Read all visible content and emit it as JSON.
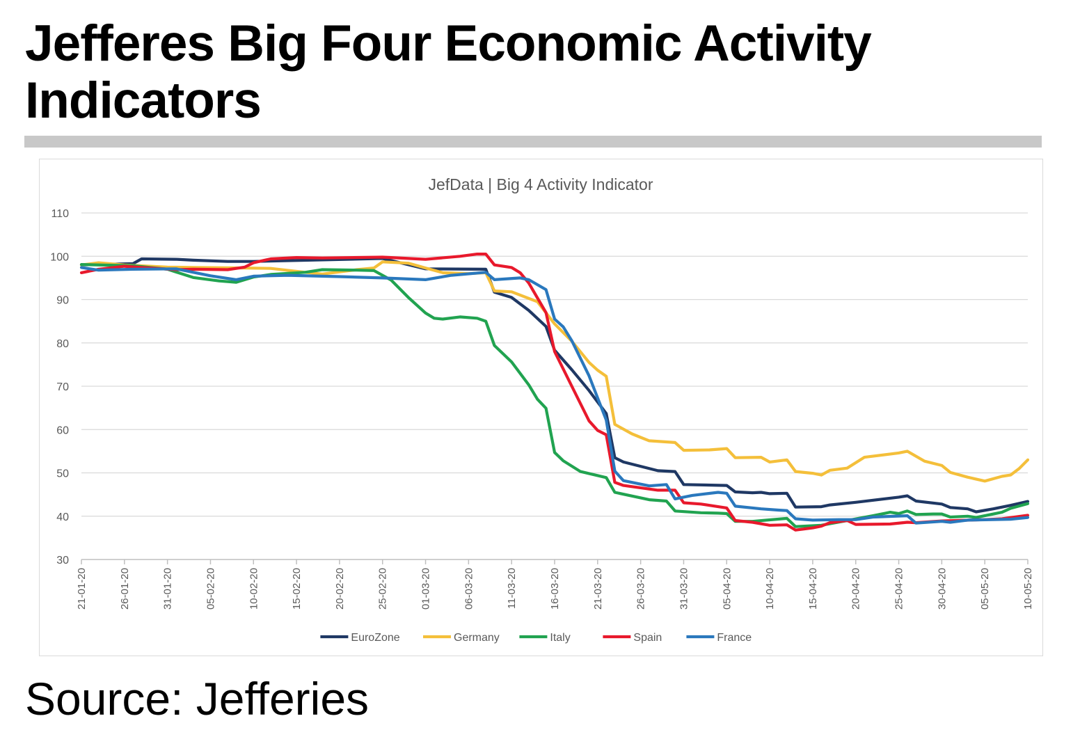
{
  "headline": "Jefferes Big Four Economic Activity Indicators",
  "source_note": "Source: Jefferies",
  "colors": {
    "rule": "#c8c8c8",
    "gridline": "#d9d9d9",
    "text": "#595959"
  },
  "chart_data": {
    "type": "line",
    "title": "JefData | Big 4 Activity Indicator",
    "xlabel": "",
    "ylabel": "",
    "ylim": [
      30,
      110
    ],
    "yticks": [
      30,
      40,
      50,
      60,
      70,
      80,
      90,
      100,
      110
    ],
    "grid": true,
    "legend_position": "bottom",
    "x_start": "21-01-20",
    "x_end": "10-05-20",
    "x_tick_labels": [
      "21-01-20",
      "26-01-20",
      "31-01-20",
      "05-02-20",
      "10-02-20",
      "15-02-20",
      "20-02-20",
      "25-02-20",
      "01-03-20",
      "06-03-20",
      "11-03-20",
      "16-03-20",
      "21-03-20",
      "26-03-20",
      "31-03-20",
      "05-04-20",
      "10-04-20",
      "15-04-20",
      "20-04-20",
      "25-04-20",
      "30-04-20",
      "05-05-20",
      "10-05-20"
    ],
    "series": [
      {
        "name": "EuroZone",
        "color": "#1f3864",
        "points": [
          [
            "21-01-20",
            98
          ],
          [
            "25-01-20",
            98.2
          ],
          [
            "27-01-20",
            98.3
          ],
          [
            "28-01-20",
            99.4
          ],
          [
            "01-02-20",
            99.3
          ],
          [
            "03-02-20",
            99.1
          ],
          [
            "07-02-20",
            98.8
          ],
          [
            "10-02-20",
            98.8
          ],
          [
            "25-02-20",
            99.5
          ],
          [
            "01-03-20",
            97.1
          ],
          [
            "08-03-20",
            97.0
          ],
          [
            "09-03-20",
            91.7
          ],
          [
            "11-03-20",
            90.5
          ],
          [
            "13-03-20",
            87.5
          ],
          [
            "15-03-20",
            83.8
          ],
          [
            "16-03-20",
            78.3
          ],
          [
            "18-03-20",
            73.8
          ],
          [
            "20-03-20",
            69.0
          ],
          [
            "22-03-20",
            63.7
          ],
          [
            "23-03-20",
            53.5
          ],
          [
            "24-03-20",
            52.5
          ],
          [
            "28-03-20",
            50.5
          ],
          [
            "30-03-20",
            50.3
          ],
          [
            "31-03-20",
            47.3
          ],
          [
            "05-04-20",
            47.1
          ],
          [
            "06-04-20",
            45.6
          ],
          [
            "08-04-20",
            45.4
          ],
          [
            "09-04-20",
            45.5
          ],
          [
            "10-04-20",
            45.2
          ],
          [
            "12-04-20",
            45.3
          ],
          [
            "13-04-20",
            42.1
          ],
          [
            "16-04-20",
            42.2
          ],
          [
            "17-04-20",
            42.6
          ],
          [
            "20-04-20",
            43.2
          ],
          [
            "25-04-20",
            44.4
          ],
          [
            "26-04-20",
            44.7
          ],
          [
            "27-04-20",
            43.5
          ],
          [
            "30-04-20",
            42.8
          ],
          [
            "01-05-20",
            42.0
          ],
          [
            "03-05-20",
            41.7
          ],
          [
            "04-05-20",
            41.0
          ],
          [
            "06-05-20",
            41.7
          ],
          [
            "08-05-20",
            42.5
          ],
          [
            "10-05-20",
            43.4
          ]
        ]
      },
      {
        "name": "Germany",
        "color": "#f4bf3a",
        "points": [
          [
            "21-01-20",
            98.0
          ],
          [
            "23-01-20",
            98.5
          ],
          [
            "26-01-20",
            98.0
          ],
          [
            "31-01-20",
            97.5
          ],
          [
            "03-02-20",
            97.4
          ],
          [
            "09-02-20",
            97.3
          ],
          [
            "12-02-20",
            97.2
          ],
          [
            "16-02-20",
            96.3
          ],
          [
            "18-02-20",
            95.9
          ],
          [
            "22-02-20",
            96.9
          ],
          [
            "24-02-20",
            97.3
          ],
          [
            "25-02-20",
            98.7
          ],
          [
            "28-02-20",
            98.4
          ],
          [
            "01-03-20",
            97.3
          ],
          [
            "03-03-20",
            96.2
          ],
          [
            "06-03-20",
            96.0
          ],
          [
            "08-03-20",
            96.2
          ],
          [
            "09-03-20",
            92.0
          ],
          [
            "11-03-20",
            91.8
          ],
          [
            "14-03-20",
            89.5
          ],
          [
            "16-03-20",
            84.4
          ],
          [
            "18-03-20",
            80.4
          ],
          [
            "20-03-20",
            75.5
          ],
          [
            "21-03-20",
            73.7
          ],
          [
            "22-03-20",
            72.3
          ],
          [
            "23-03-20",
            61.2
          ],
          [
            "25-03-20",
            59.0
          ],
          [
            "26-03-20",
            58.2
          ],
          [
            "27-03-20",
            57.4
          ],
          [
            "30-03-20",
            57.0
          ],
          [
            "31-03-20",
            55.2
          ],
          [
            "03-04-20",
            55.3
          ],
          [
            "05-04-20",
            55.6
          ],
          [
            "06-04-20",
            53.5
          ],
          [
            "09-04-20",
            53.6
          ],
          [
            "10-04-20",
            52.5
          ],
          [
            "12-04-20",
            53.0
          ],
          [
            "13-04-20",
            50.3
          ],
          [
            "15-04-20",
            49.9
          ],
          [
            "16-04-20",
            49.5
          ],
          [
            "17-04-20",
            50.6
          ],
          [
            "19-04-20",
            51.1
          ],
          [
            "21-04-20",
            53.6
          ],
          [
            "25-04-20",
            54.6
          ],
          [
            "26-04-20",
            55.0
          ],
          [
            "28-04-20",
            52.7
          ],
          [
            "30-04-20",
            51.7
          ],
          [
            "01-05-20",
            50.1
          ],
          [
            "03-05-20",
            49.0
          ],
          [
            "05-05-20",
            48.1
          ],
          [
            "07-05-20",
            49.2
          ],
          [
            "08-05-20",
            49.5
          ],
          [
            "09-05-20",
            51.0
          ],
          [
            "10-05-20",
            53.0
          ]
        ]
      },
      {
        "name": "Italy",
        "color": "#21a350",
        "points": [
          [
            "21-01-20",
            98.1
          ],
          [
            "27-01-20",
            97.8
          ],
          [
            "31-01-20",
            97.0
          ],
          [
            "03-02-20",
            95.1
          ],
          [
            "06-02-20",
            94.3
          ],
          [
            "08-02-20",
            94.0
          ],
          [
            "10-02-20",
            95.2
          ],
          [
            "12-02-20",
            95.8
          ],
          [
            "16-02-20",
            96.3
          ],
          [
            "18-02-20",
            96.9
          ],
          [
            "22-02-20",
            96.8
          ],
          [
            "24-02-20",
            96.7
          ],
          [
            "26-02-20",
            94.5
          ],
          [
            "28-02-20",
            90.5
          ],
          [
            "01-03-20",
            86.9
          ],
          [
            "02-03-20",
            85.7
          ],
          [
            "03-03-20",
            85.5
          ],
          [
            "05-03-20",
            86.0
          ],
          [
            "07-03-20",
            85.7
          ],
          [
            "08-03-20",
            85.0
          ],
          [
            "09-03-20",
            79.4
          ],
          [
            "11-03-20",
            75.6
          ],
          [
            "13-03-20",
            70.3
          ],
          [
            "14-03-20",
            67.0
          ],
          [
            "15-03-20",
            64.9
          ],
          [
            "16-03-20",
            54.7
          ],
          [
            "17-03-20",
            52.8
          ],
          [
            "19-03-20",
            50.3
          ],
          [
            "22-03-20",
            48.9
          ],
          [
            "23-03-20",
            45.5
          ],
          [
            "27-03-20",
            43.8
          ],
          [
            "29-03-20",
            43.5
          ],
          [
            "30-03-20",
            41.2
          ],
          [
            "02-04-20",
            40.8
          ],
          [
            "04-04-20",
            40.7
          ],
          [
            "05-04-20",
            40.6
          ],
          [
            "06-04-20",
            38.8
          ],
          [
            "08-04-20",
            38.8
          ],
          [
            "12-04-20",
            39.5
          ],
          [
            "13-04-20",
            37.6
          ],
          [
            "16-04-20",
            37.9
          ],
          [
            "19-04-20",
            39.0
          ],
          [
            "22-04-20",
            40.1
          ],
          [
            "24-04-20",
            40.9
          ],
          [
            "25-04-20",
            40.6
          ],
          [
            "26-04-20",
            41.2
          ],
          [
            "27-04-20",
            40.4
          ],
          [
            "29-04-20",
            40.5
          ],
          [
            "30-04-20",
            40.5
          ],
          [
            "01-05-20",
            39.8
          ],
          [
            "03-05-20",
            40.0
          ],
          [
            "04-05-20",
            39.7
          ],
          [
            "07-05-20",
            40.9
          ],
          [
            "08-05-20",
            41.8
          ],
          [
            "10-05-20",
            42.9
          ]
        ]
      },
      {
        "name": "Spain",
        "color": "#e8192c",
        "points": [
          [
            "21-01-20",
            96.2
          ],
          [
            "23-01-20",
            97.0
          ],
          [
            "26-01-20",
            97.7
          ],
          [
            "28-01-20",
            97.4
          ],
          [
            "01-02-20",
            96.9
          ],
          [
            "03-02-20",
            97.0
          ],
          [
            "07-02-20",
            96.9
          ],
          [
            "09-02-20",
            97.5
          ],
          [
            "10-02-20",
            98.5
          ],
          [
            "12-02-20",
            99.4
          ],
          [
            "15-02-20",
            99.7
          ],
          [
            "18-02-20",
            99.6
          ],
          [
            "25-02-20",
            99.8
          ],
          [
            "01-03-20",
            99.3
          ],
          [
            "05-03-20",
            100.0
          ],
          [
            "07-03-20",
            100.5
          ],
          [
            "08-03-20",
            100.5
          ],
          [
            "09-03-20",
            98.0
          ],
          [
            "11-03-20",
            97.4
          ],
          [
            "12-03-20",
            96.2
          ],
          [
            "13-03-20",
            93.8
          ],
          [
            "15-03-20",
            87.0
          ],
          [
            "16-03-20",
            78.0
          ],
          [
            "18-03-20",
            70.0
          ],
          [
            "20-03-20",
            62.0
          ],
          [
            "21-03-20",
            59.8
          ],
          [
            "22-03-20",
            58.8
          ],
          [
            "23-03-20",
            47.8
          ],
          [
            "24-03-20",
            47.1
          ],
          [
            "28-03-20",
            46.0
          ],
          [
            "30-03-20",
            46.0
          ],
          [
            "31-03-20",
            43.1
          ],
          [
            "02-04-20",
            42.8
          ],
          [
            "05-04-20",
            41.9
          ],
          [
            "06-04-20",
            39.0
          ],
          [
            "08-04-20",
            38.6
          ],
          [
            "10-04-20",
            37.9
          ],
          [
            "12-04-20",
            38.0
          ],
          [
            "13-04-20",
            36.8
          ],
          [
            "15-04-20",
            37.3
          ],
          [
            "16-04-20",
            37.7
          ],
          [
            "17-04-20",
            38.5
          ],
          [
            "19-04-20",
            39.0
          ],
          [
            "20-04-20",
            38.1
          ],
          [
            "24-04-20",
            38.2
          ],
          [
            "26-04-20",
            38.6
          ],
          [
            "27-04-20",
            38.5
          ],
          [
            "30-04-20",
            38.9
          ],
          [
            "05-05-20",
            39.2
          ],
          [
            "07-05-20",
            39.4
          ],
          [
            "10-05-20",
            40.2
          ]
        ]
      },
      {
        "name": "France",
        "color": "#2a78bd",
        "points": [
          [
            "21-01-20",
            97.4
          ],
          [
            "23-01-20",
            96.8
          ],
          [
            "27-01-20",
            97.0
          ],
          [
            "01-02-20",
            97.1
          ],
          [
            "05-02-20",
            95.5
          ],
          [
            "08-02-20",
            94.6
          ],
          [
            "10-02-20",
            95.4
          ],
          [
            "14-02-20",
            95.6
          ],
          [
            "20-02-20",
            95.3
          ],
          [
            "25-02-20",
            95.0
          ],
          [
            "01-03-20",
            94.6
          ],
          [
            "04-03-20",
            95.6
          ],
          [
            "08-03-20",
            96.3
          ],
          [
            "09-03-20",
            94.6
          ],
          [
            "12-03-20",
            95.0
          ],
          [
            "13-03-20",
            94.6
          ],
          [
            "15-03-20",
            92.3
          ],
          [
            "16-03-20",
            85.5
          ],
          [
            "17-03-20",
            83.7
          ],
          [
            "18-03-20",
            80.5
          ],
          [
            "20-03-20",
            72.4
          ],
          [
            "22-03-20",
            62.2
          ],
          [
            "23-03-20",
            50.4
          ],
          [
            "24-03-20",
            48.2
          ],
          [
            "27-03-20",
            47.0
          ],
          [
            "29-03-20",
            47.3
          ],
          [
            "30-03-20",
            44.0
          ],
          [
            "01-04-20",
            44.8
          ],
          [
            "04-04-20",
            45.5
          ],
          [
            "05-04-20",
            45.3
          ],
          [
            "06-04-20",
            42.3
          ],
          [
            "09-04-20",
            41.7
          ],
          [
            "11-04-20",
            41.4
          ],
          [
            "12-04-20",
            41.3
          ],
          [
            "13-04-20",
            39.4
          ],
          [
            "15-04-20",
            39.1
          ],
          [
            "18-04-20",
            39.2
          ],
          [
            "20-04-20",
            39.2
          ],
          [
            "22-04-20",
            39.8
          ],
          [
            "26-04-20",
            40.1
          ],
          [
            "27-04-20",
            38.4
          ],
          [
            "30-04-20",
            38.8
          ],
          [
            "01-05-20",
            38.6
          ],
          [
            "03-05-20",
            39.1
          ],
          [
            "08-05-20",
            39.3
          ],
          [
            "10-05-20",
            39.7
          ]
        ]
      }
    ]
  }
}
